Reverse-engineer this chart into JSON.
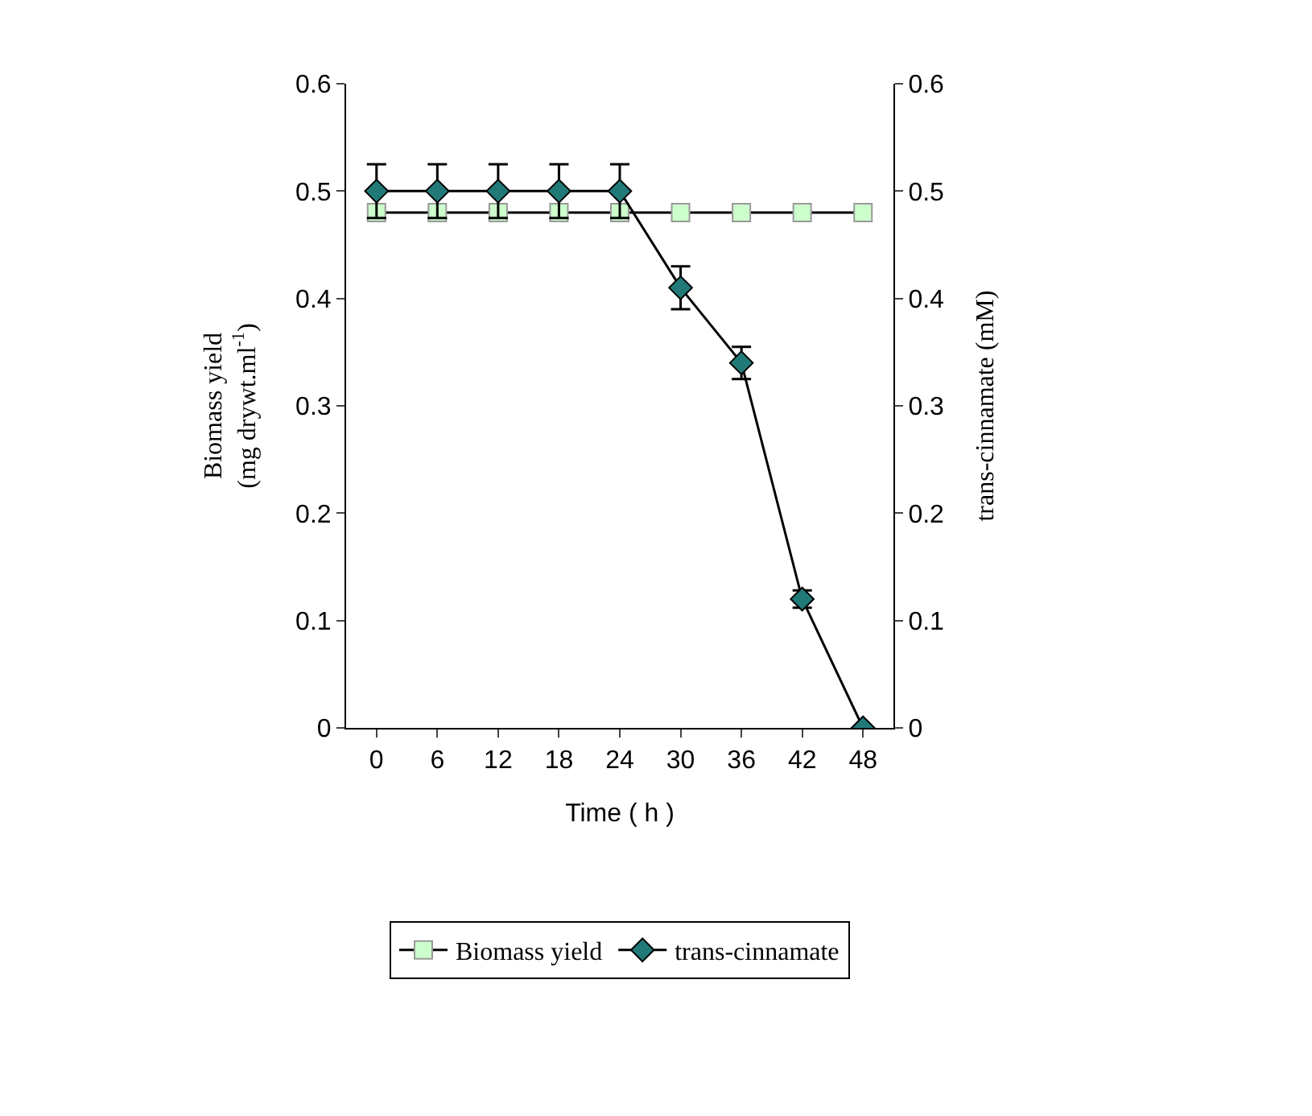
{
  "chart_data": {
    "type": "line",
    "xlabel": "Time ( h )",
    "ylabel": "Biomass yield\n(mg drywt.ml$^{-1}$)",
    "y2label": "trans-cinnamate (mM)",
    "categories": [
      "0",
      "6",
      "12",
      "18",
      "24",
      "30",
      "36",
      "42",
      "48"
    ],
    "series": [
      {
        "name": "Biomass yield",
        "color": "#ccffcc",
        "marker": "square",
        "values": [
          0.48,
          0.48,
          0.48,
          0.48,
          0.48,
          0.48,
          0.48,
          0.48,
          0.48
        ]
      },
      {
        "name": "trans-cinnamate",
        "color": "#227a78",
        "marker": "diamond",
        "axis": "y2",
        "values": [
          0.5,
          0.5,
          0.5,
          0.5,
          0.5,
          0.41,
          0.34,
          0.12,
          0
        ],
        "errors": [
          0.025,
          0.025,
          0.025,
          0.025,
          0.025,
          0.02,
          0.015,
          0.008,
          null
        ]
      }
    ],
    "ylim": [
      0,
      0.6
    ],
    "yticks": [
      0,
      0.1,
      0.2,
      0.3,
      0.4,
      0.5,
      0.6
    ],
    "y2lim": [
      0,
      0.6
    ],
    "y2ticks": [
      0,
      0.1,
      0.2,
      0.3,
      0.4,
      0.5,
      0.6
    ],
    "grid": false,
    "legend": "bottom",
    "line_style": "solid"
  }
}
